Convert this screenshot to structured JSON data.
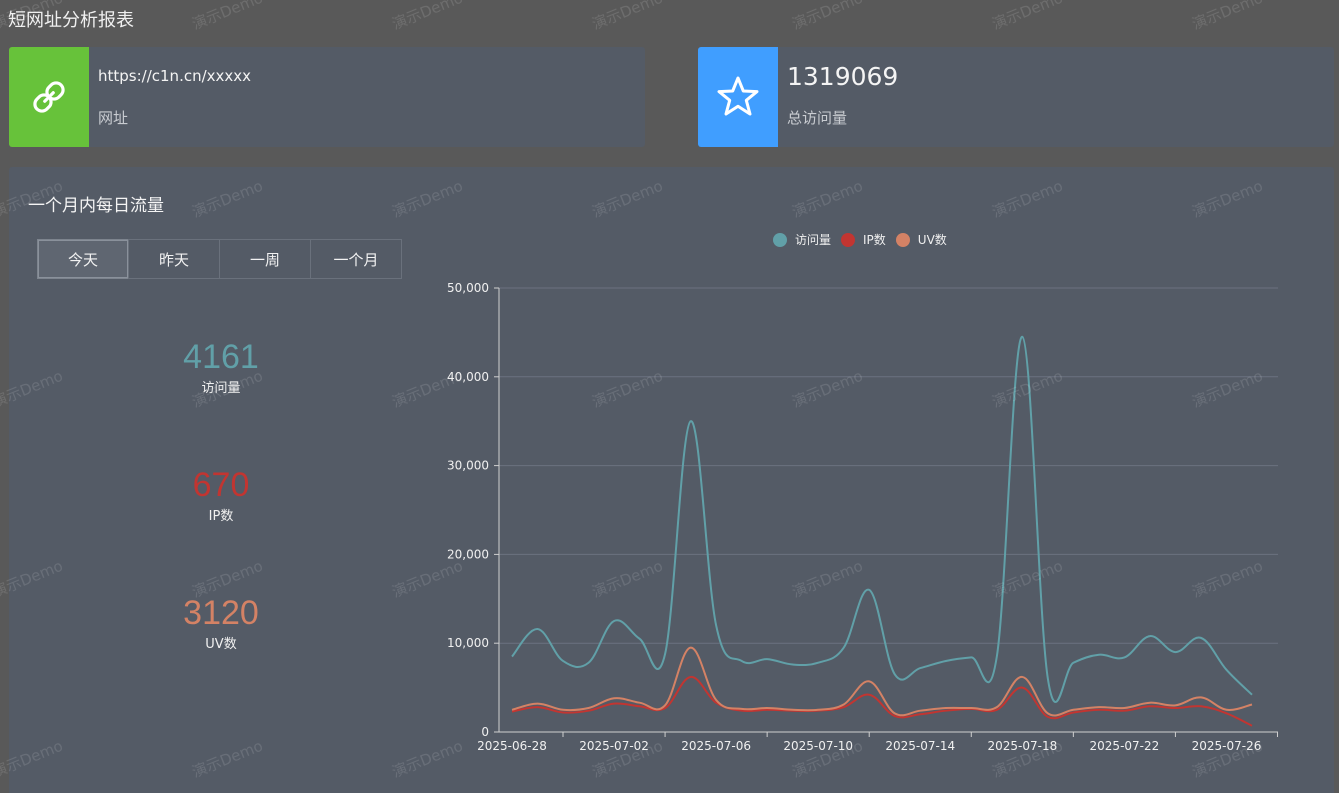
{
  "header": {
    "title": "短网址分析报表"
  },
  "cards": {
    "url": {
      "value": "https://c1n.cn/xxxxx",
      "label": "网址",
      "icon": "link-icon",
      "color": "#67c23a"
    },
    "visits": {
      "value": "1319069",
      "label": "总访问量",
      "icon": "star-icon",
      "color": "#409eff"
    }
  },
  "panel": {
    "title": "一个月内每日流量",
    "tabs": [
      "今天",
      "昨天",
      "一周",
      "一个月"
    ],
    "active_tab": "今天",
    "stats": [
      {
        "value": "4161",
        "label": "访问量",
        "color": "#61a0a8"
      },
      {
        "value": "670",
        "label": "IP数",
        "color": "#c23531"
      },
      {
        "value": "3120",
        "label": "UV数",
        "color": "#d48265"
      }
    ]
  },
  "watermark": "演示Demo",
  "chart_data": {
    "type": "line",
    "smooth": true,
    "x": [
      "2025-06-28",
      "2025-06-29",
      "2025-06-30",
      "2025-07-01",
      "2025-07-02",
      "2025-07-03",
      "2025-07-04",
      "2025-07-05",
      "2025-07-06",
      "2025-07-07",
      "2025-07-08",
      "2025-07-09",
      "2025-07-10",
      "2025-07-11",
      "2025-07-12",
      "2025-07-13",
      "2025-07-14",
      "2025-07-15",
      "2025-07-16",
      "2025-07-17",
      "2025-07-18",
      "2025-07-19",
      "2025-07-20",
      "2025-07-21",
      "2025-07-22",
      "2025-07-23",
      "2025-07-24",
      "2025-07-25",
      "2025-07-26",
      "2025-07-27"
    ],
    "x_tick_labels": [
      "2025-06-28",
      "2025-07-02",
      "2025-07-06",
      "2025-07-10",
      "2025-07-14",
      "2025-07-18",
      "2025-07-22",
      "2025-07-26"
    ],
    "ylim": [
      0,
      50000
    ],
    "y_ticks": [
      0,
      10000,
      20000,
      30000,
      40000,
      50000
    ],
    "y_tick_labels": [
      "0",
      "10,000",
      "20,000",
      "30,000",
      "40,000",
      "50,000"
    ],
    "legend": [
      "访问量",
      "IP数",
      "UV数"
    ],
    "series": [
      {
        "name": "访问量",
        "color": "#61a0a8",
        "values": [
          8500,
          11600,
          8000,
          7800,
          12500,
          10500,
          8800,
          35000,
          12000,
          8000,
          8200,
          7600,
          7800,
          9500,
          16000,
          6500,
          7200,
          8000,
          8400,
          8500,
          44500,
          6000,
          7800,
          8700,
          8400,
          10800,
          9000,
          10600,
          7000,
          4200
        ]
      },
      {
        "name": "IP数",
        "color": "#c23531",
        "values": [
          2300,
          2800,
          2200,
          2400,
          3200,
          2900,
          2700,
          6200,
          3300,
          2400,
          2500,
          2400,
          2400,
          2800,
          4200,
          1800,
          2000,
          2400,
          2600,
          2500,
          5000,
          1700,
          2200,
          2500,
          2400,
          2900,
          2700,
          2900,
          2100,
          700
        ]
      },
      {
        "name": "UV数",
        "color": "#d48265",
        "values": [
          2500,
          3200,
          2500,
          2700,
          3800,
          3300,
          3000,
          9500,
          3600,
          2600,
          2700,
          2500,
          2500,
          3100,
          5700,
          2100,
          2400,
          2700,
          2700,
          2800,
          6200,
          2100,
          2500,
          2800,
          2700,
          3300,
          3000,
          3900,
          2500,
          3100
        ]
      }
    ]
  }
}
